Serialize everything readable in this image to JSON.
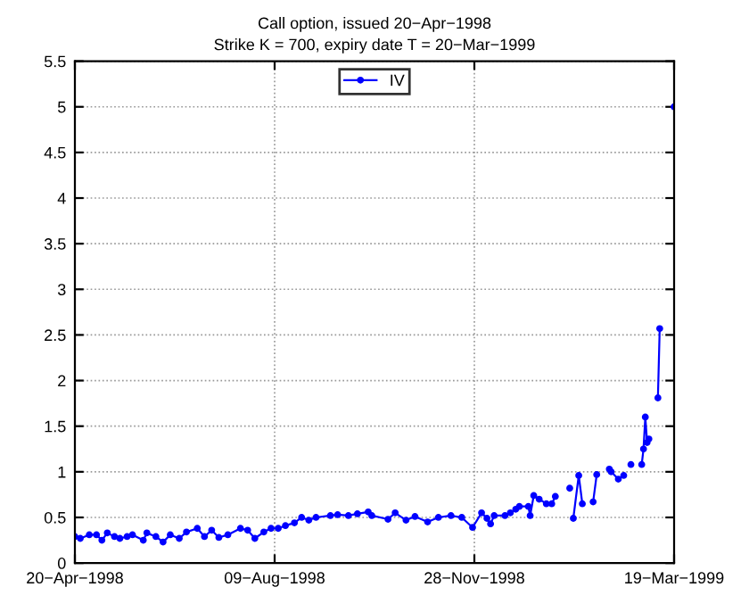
{
  "chart_data": {
    "type": "line",
    "title": "Call option, issued 20−Apr−1998",
    "subtitle": "Strike K = 700, expiry date T = 20−Mar−1999",
    "x": [
      "1998-04-20",
      "1998-04-23",
      "1998-04-28",
      "1998-05-02",
      "1998-05-05",
      "1998-05-08",
      "1998-05-12",
      "1998-05-15",
      "1998-05-19",
      "1998-05-22",
      "1998-05-28",
      "1998-05-30",
      "1998-06-04",
      "1998-06-08",
      "1998-06-12",
      "1998-06-17",
      "1998-06-21",
      "1998-06-27",
      "1998-07-01",
      "1998-07-05",
      "1998-07-09",
      "1998-07-14",
      "1998-07-21",
      "1998-07-25",
      "1998-07-29",
      "1998-08-03",
      "1998-08-07",
      "1998-08-11",
      "1998-08-15",
      "1998-08-20",
      "1998-08-24",
      "1998-08-28",
      "1998-09-01",
      "1998-09-09",
      "1998-09-13",
      "1998-09-19",
      "1998-09-24",
      "1998-09-30",
      "1998-10-02",
      "1998-10-11",
      "1998-10-15",
      "1998-10-21",
      "1998-10-26",
      "1998-11-02",
      "1998-11-08",
      "1998-11-15",
      "1998-11-21",
      "1998-11-27",
      "1998-12-02",
      "1998-12-05",
      "1998-12-07",
      "1998-12-09",
      "1998-12-15",
      "1998-12-18",
      "1998-12-21",
      "1998-12-23",
      "1998-12-28",
      "1998-12-29",
      "1998-12-31",
      "1999-01-03",
      "1999-01-07",
      "1999-01-10",
      "1999-01-12",
      "1999-01-16",
      "1999-01-20",
      "1999-01-21",
      "1999-01-22",
      "1999-01-25",
      "1999-01-27",
      "1999-01-30",
      "1999-02-02",
      "1999-02-04",
      "1999-02-08",
      "1999-02-11",
      "1999-02-12",
      "1999-02-16",
      "1999-02-19",
      "1999-02-21",
      "1999-02-23",
      "1999-02-26",
      "1999-03-01",
      "1999-03-02",
      "1999-03-03",
      "1999-03-04",
      "1999-03-05",
      "1999-03-08",
      "1999-03-10",
      "1999-03-11",
      "1999-03-15",
      "1999-03-19"
    ],
    "series": [
      {
        "name": "IV",
        "color": "#0000ff",
        "values": [
          0.29,
          0.27,
          0.31,
          0.31,
          0.25,
          0.33,
          0.29,
          0.27,
          0.29,
          0.31,
          0.25,
          0.33,
          0.29,
          0.23,
          0.31,
          0.27,
          0.34,
          0.38,
          0.29,
          0.36,
          0.28,
          0.31,
          0.38,
          0.36,
          0.27,
          0.34,
          0.38,
          0.38,
          0.41,
          0.44,
          0.5,
          0.47,
          0.5,
          0.52,
          0.53,
          0.52,
          0.54,
          0.56,
          0.52,
          0.48,
          0.55,
          0.47,
          0.51,
          0.45,
          0.5,
          0.52,
          0.5,
          0.39,
          0.55,
          0.49,
          0.43,
          0.52,
          0.52,
          0.55,
          0.59,
          0.62,
          0.62,
          0.52,
          0.74,
          0.7,
          0.65,
          0.65,
          0.73,
          null,
          0.82,
          null,
          0.49,
          0.96,
          0.65,
          null,
          0.67,
          0.97,
          null,
          1.03,
          1.0,
          0.92,
          0.96,
          null,
          1.08,
          null,
          1.08,
          1.25,
          1.6,
          1.32,
          1.36,
          null,
          1.81,
          2.57,
          null,
          5.0
        ]
      }
    ],
    "xlim": [
      "1998-04-20",
      "1999-03-19"
    ],
    "xticks": [
      {
        "value": "1998-04-20",
        "label": "20−Apr−1998"
      },
      {
        "value": "1998-08-09",
        "label": "09−Aug−1998"
      },
      {
        "value": "1998-11-28",
        "label": "28−Nov−1998"
      },
      {
        "value": "1999-03-19",
        "label": "19−Mar−1999"
      }
    ],
    "ylim": [
      0,
      5.5
    ],
    "yticks": [
      0,
      0.5,
      1,
      1.5,
      2,
      2.5,
      3,
      3.5,
      4,
      4.5,
      5,
      5.5
    ],
    "grid": true,
    "legend": "top",
    "marker": "circle",
    "line_style": "solid"
  }
}
